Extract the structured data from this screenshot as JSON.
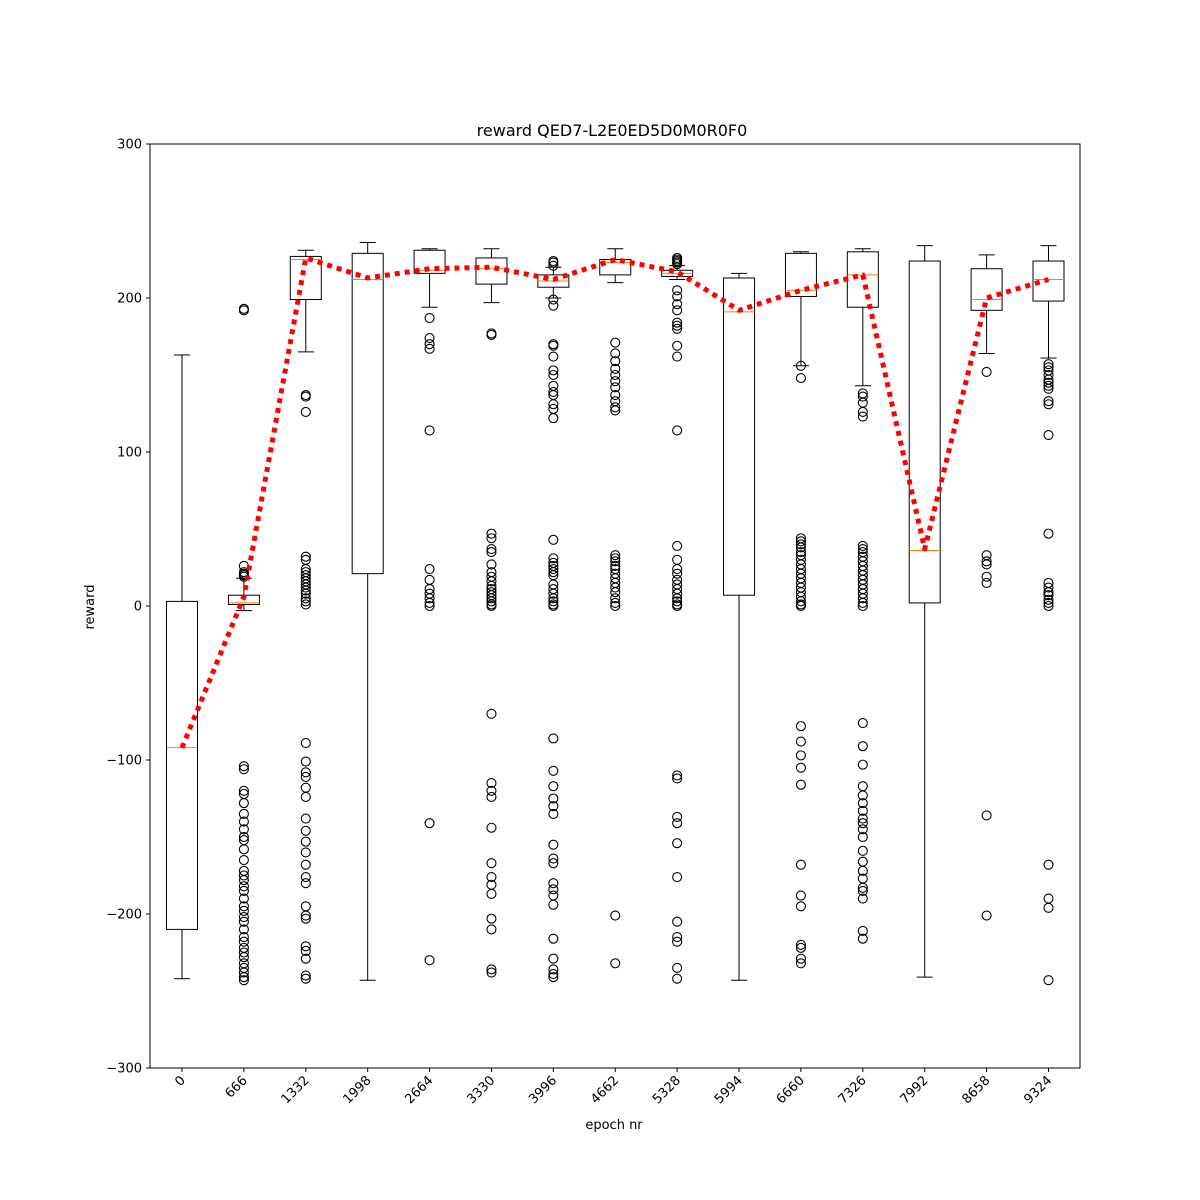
{
  "chart_data": {
    "type": "box",
    "title": "reward QED7-L2E0ED5D0M0R0F0",
    "xlabel": "epoch nr",
    "ylabel": "reward",
    "ylim": [
      -300,
      300
    ],
    "yticks": [
      -300,
      -200,
      -100,
      0,
      100,
      200,
      300
    ],
    "ytick_labels": [
      "−300",
      "−200",
      "−100",
      "0",
      "100",
      "200",
      "300"
    ],
    "categories": [
      "0",
      "666",
      "1332",
      "1998",
      "2664",
      "3330",
      "3996",
      "4662",
      "5328",
      "5994",
      "6660",
      "7326",
      "7992",
      "8658",
      "9324"
    ],
    "colors": {
      "box": "#000000",
      "median": "#ff7f0e",
      "mean_line": "#ff0000"
    },
    "boxes": [
      {
        "q1": -210,
        "median": -92,
        "q3": 3,
        "whislo": -242,
        "whishi": 163,
        "fliers": []
      },
      {
        "q1": 1,
        "median": 2,
        "q3": 7,
        "whislo": -3,
        "whishi": 18,
        "fliers": [
          19,
          20,
          21,
          22,
          26,
          192,
          193,
          -104,
          -106,
          -120,
          -122,
          -128,
          -135,
          -140,
          -145,
          -150,
          -152,
          -158,
          -165,
          -172,
          -175,
          -178,
          -182,
          -185,
          -190,
          -195,
          -198,
          -202,
          -205,
          -210,
          -215,
          -218,
          -222,
          -225,
          -228,
          -232,
          -235,
          -238,
          -241,
          -243
        ]
      },
      {
        "q1": 199,
        "median": 225,
        "q3": 227,
        "whislo": 165,
        "whishi": 231,
        "fliers": [
          136,
          137,
          126,
          1,
          3,
          5,
          8,
          10,
          12,
          14,
          16,
          18,
          20,
          22,
          24,
          30,
          32,
          -89,
          -101,
          -108,
          -111,
          -118,
          -124,
          -138,
          -146,
          -153,
          -160,
          -168,
          -176,
          -180,
          -195,
          -201,
          -203,
          -221,
          -224,
          -229,
          -240,
          -242
        ]
      },
      {
        "q1": 21,
        "median": 212,
        "q3": 229,
        "whislo": -243,
        "whishi": 236,
        "fliers": []
      },
      {
        "q1": 216,
        "median": 218,
        "q3": 231,
        "whislo": 194,
        "whishi": 232,
        "fliers": [
          187,
          174,
          170,
          167,
          114,
          24,
          17,
          11,
          8,
          5,
          2,
          0,
          -141,
          -230
        ]
      },
      {
        "q1": 209,
        "median": 219,
        "q3": 226,
        "whislo": 197,
        "whishi": 232,
        "fliers": [
          177,
          176,
          47,
          44,
          37,
          35,
          27,
          22,
          19,
          16,
          13,
          11,
          9,
          7,
          5,
          3,
          1,
          0,
          -70,
          -115,
          -120,
          -124,
          -144,
          -167,
          -176,
          -181,
          -187,
          -203,
          -210,
          -236,
          -238
        ]
      },
      {
        "q1": 207,
        "median": 211,
        "q3": 215,
        "whislo": 200,
        "whishi": 220,
        "fliers": [
          224,
          223,
          221,
          199,
          195,
          170,
          169,
          162,
          153,
          150,
          143,
          139,
          137,
          131,
          128,
          122,
          43,
          31,
          28,
          26,
          24,
          22,
          20,
          14,
          11,
          8,
          5,
          3,
          1,
          0,
          -86,
          -107,
          -117,
          -125,
          -130,
          -135,
          -155,
          -164,
          -167,
          -180,
          -184,
          -188,
          -194,
          -216,
          -229,
          -236,
          -239,
          -241
        ]
      },
      {
        "q1": 215,
        "median": 223,
        "q3": 225,
        "whislo": 210,
        "whishi": 232,
        "fliers": [
          171,
          164,
          159,
          154,
          150,
          146,
          142,
          137,
          133,
          129,
          127,
          33,
          31,
          29,
          26,
          24,
          21,
          18,
          15,
          12,
          9,
          5,
          2,
          0,
          -201,
          -232
        ]
      },
      {
        "q1": 214,
        "median": 216,
        "q3": 218,
        "whislo": 212,
        "whishi": 221,
        "fliers": [
          226,
          225,
          224,
          223,
          222,
          205,
          201,
          196,
          192,
          184,
          182,
          180,
          169,
          162,
          114,
          39,
          30,
          24,
          21,
          17,
          14,
          11,
          8,
          5,
          3,
          1,
          0,
          -110,
          -112,
          -137,
          -141,
          -154,
          -176,
          -205,
          -215,
          -218,
          -235,
          -242
        ]
      },
      {
        "q1": 7,
        "median": 191,
        "q3": 213,
        "whislo": -243,
        "whishi": 216,
        "fliers": []
      },
      {
        "q1": 201,
        "median": 205,
        "q3": 229,
        "whislo": 156,
        "whishi": 230,
        "fliers": [
          156,
          148,
          44,
          42,
          40,
          38,
          35,
          33,
          30,
          27,
          24,
          21,
          18,
          15,
          12,
          9,
          6,
          3,
          1,
          0,
          -78,
          -88,
          -97,
          -105,
          -116,
          -168,
          -188,
          -195,
          -220,
          -222,
          -229,
          -232
        ]
      },
      {
        "q1": 194,
        "median": 215,
        "q3": 230,
        "whislo": 143,
        "whishi": 232,
        "fliers": [
          138,
          136,
          132,
          126,
          123,
          39,
          37,
          35,
          32,
          29,
          26,
          23,
          20,
          17,
          14,
          11,
          8,
          5,
          2,
          0,
          -76,
          -91,
          -103,
          -117,
          -123,
          -128,
          -133,
          -138,
          -141,
          -145,
          -150,
          -159,
          -166,
          -172,
          -177,
          -183,
          -185,
          -190,
          -211,
          -216
        ]
      },
      {
        "q1": 2,
        "median": 36,
        "q3": 224,
        "whislo": -241,
        "whishi": 234,
        "fliers": []
      },
      {
        "q1": 192,
        "median": 199,
        "q3": 219,
        "whislo": 164,
        "whishi": 228,
        "fliers": [
          152,
          33,
          29,
          27,
          19,
          15,
          -136,
          -201
        ]
      },
      {
        "q1": 198,
        "median": 212,
        "q3": 224,
        "whislo": 161,
        "whishi": 234,
        "fliers": [
          157,
          155,
          153,
          150,
          147,
          145,
          143,
          141,
          133,
          131,
          111,
          47,
          15,
          12,
          9,
          7,
          4,
          2,
          0,
          -168,
          -190,
          -196,
          -243
        ]
      }
    ],
    "mean_line": {
      "style": "dotted",
      "values": [
        -92,
        6,
        226,
        213,
        219,
        220,
        212,
        225,
        217,
        192,
        205,
        215,
        37,
        200,
        212
      ]
    }
  }
}
